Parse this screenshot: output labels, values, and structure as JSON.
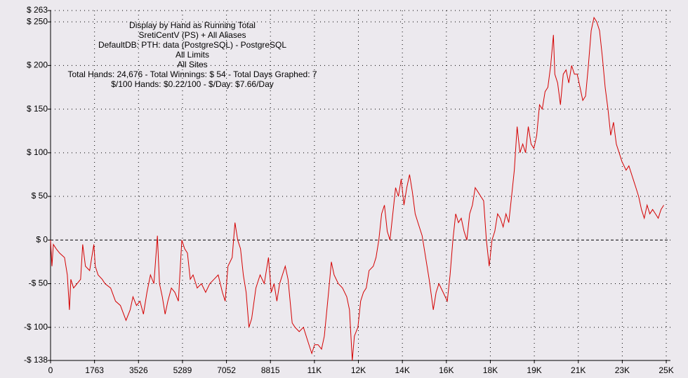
{
  "chart_data": {
    "type": "line",
    "title": "Display by Hand as Running Total",
    "subtitle": [
      "SretiCentV (PS) + All Aliases",
      "DefaultDB: PTH: data (PostgreSQL) - PostgreSQL",
      "All Limits",
      "All Sites",
      "Total Hands: 24,676 - Total Winnings: $ 54 - Total Days Graphed: 7",
      "$/100 Hands: $0.22/100 - $/Day: $7.66/Day"
    ],
    "x": [
      0,
      56,
      112,
      224,
      364,
      560,
      672,
      756,
      812,
      924,
      1064,
      1204,
      1288,
      1400,
      1568,
      1736,
      1792,
      1904,
      2072,
      2184,
      2408,
      2604,
      2800,
      3024,
      3192,
      3304,
      3444,
      3584,
      3724,
      3864,
      4004,
      4144,
      4284,
      4368,
      4480,
      4592,
      4704,
      4844,
      4984,
      5124,
      5264,
      5376,
      5488,
      5600,
      5712,
      5880,
      6048,
      6216,
      6384,
      6552,
      6720,
      6888,
      7000,
      7112,
      7280,
      7392,
      7504,
      7616,
      7728,
      7840,
      7952,
      8064,
      8232,
      8400,
      8568,
      8736,
      8848,
      8960,
      9072,
      9184,
      9296,
      9408,
      9520,
      9688,
      9800,
      9968,
      10136,
      10304,
      10472,
      10584,
      10724,
      10864,
      10976,
      11144,
      11256,
      11368,
      11536,
      11704,
      11872,
      11984,
      12096,
      12180,
      12320,
      12432,
      12544,
      12656,
      12768,
      12936,
      13048,
      13160,
      13272,
      13384,
      13496,
      13608,
      13720,
      13832,
      13944,
      14056,
      14168,
      14280,
      14392,
      14504,
      14616,
      14728,
      14896,
      15008,
      15176,
      15344,
      15456,
      15568,
      15736,
      15904,
      16016,
      16128,
      16240,
      16352,
      16464,
      16576,
      16688,
      16800,
      16912,
      17024,
      17136,
      17248,
      17360,
      17472,
      17584,
      17696,
      17808,
      17920,
      18032,
      18144,
      18256,
      18368,
      18480,
      18592,
      18704,
      18816,
      18928,
      19040,
      19152,
      19264,
      19376,
      19488,
      19600,
      19712,
      19824,
      19936,
      20048,
      20160,
      20216,
      20328,
      20440,
      20552,
      20664,
      20776,
      20888,
      21000,
      21112,
      21224,
      21336,
      21448,
      21560,
      21672,
      21784,
      21896,
      22008,
      22120,
      22232,
      22344,
      22456,
      22568,
      22680,
      22792,
      22904,
      23072,
      23184,
      23352,
      23464,
      23576,
      23688,
      23800,
      23912,
      24024,
      24136,
      24248,
      24360,
      24472,
      24584
    ],
    "series": [
      {
        "color": "#d40000",
        "values": [
          0,
          -30,
          -5,
          -10,
          -15,
          -20,
          -40,
          -80,
          -45,
          -55,
          -50,
          -45,
          -5,
          -30,
          -35,
          -5,
          -30,
          -40,
          -45,
          -50,
          -55,
          -70,
          -75,
          -92,
          -80,
          -65,
          -75,
          -70,
          -85,
          -60,
          -40,
          -50,
          5,
          -50,
          -65,
          -85,
          -70,
          -55,
          -60,
          -70,
          0,
          -10,
          -15,
          -45,
          -40,
          -55,
          -50,
          -60,
          -50,
          -45,
          -40,
          -60,
          -70,
          -30,
          -20,
          20,
          0,
          -10,
          -40,
          -60,
          -100,
          -90,
          -55,
          -40,
          -50,
          -20,
          -60,
          -50,
          -70,
          -50,
          -40,
          -30,
          -45,
          -95,
          -100,
          -105,
          -100,
          -115,
          -130,
          -120,
          -120,
          -125,
          -110,
          -60,
          -25,
          -40,
          -50,
          -55,
          -65,
          -80,
          -138,
          -110,
          -100,
          -70,
          -60,
          -55,
          -35,
          -30,
          -20,
          0,
          30,
          40,
          10,
          0,
          30,
          60,
          50,
          70,
          40,
          60,
          75,
          55,
          30,
          20,
          5,
          -15,
          -45,
          -80,
          -60,
          -50,
          -60,
          -70,
          -40,
          0,
          30,
          20,
          25,
          10,
          0,
          30,
          40,
          60,
          55,
          50,
          45,
          0,
          -30,
          0,
          10,
          30,
          25,
          15,
          30,
          20,
          50,
          80,
          130,
          100,
          110,
          100,
          130,
          110,
          105,
          120,
          155,
          150,
          170,
          175,
          200,
          235,
          190,
          180,
          155,
          190,
          195,
          180,
          200,
          190,
          190,
          175,
          160,
          165,
          200,
          240,
          255,
          250,
          240,
          210,
          175,
          150,
          120,
          135,
          110,
          100,
          90,
          80,
          85,
          70,
          60,
          50,
          35,
          25,
          40,
          30,
          35,
          30,
          25,
          35,
          40
        ]
      }
    ],
    "xlim": [
      0,
      24850
    ],
    "xticks": [
      0,
      1763,
      3526,
      5289,
      7052,
      8815,
      {
        "value": 10578,
        "label": "11K"
      },
      {
        "value": 12341,
        "label": "12K"
      },
      {
        "value": 14104,
        "label": "14K"
      },
      {
        "value": 15867,
        "label": "16K"
      },
      {
        "value": 17630,
        "label": "18K"
      },
      {
        "value": 19393,
        "label": "19K"
      },
      {
        "value": 21156,
        "label": "21K"
      },
      {
        "value": 22919,
        "label": "23K"
      },
      {
        "value": 24682,
        "label": "25K"
      }
    ],
    "ylim": [
      -138,
      263
    ],
    "yticks": [
      {
        "value": -138,
        "label": "-$ 138"
      },
      {
        "value": -100,
        "label": "-$ 100"
      },
      {
        "value": -50,
        "label": "-$ 50"
      },
      {
        "value": 0,
        "label": "$ 0"
      },
      {
        "value": 50,
        "label": "$ 50"
      },
      {
        "value": 100,
        "label": "$ 100"
      },
      {
        "value": 150,
        "label": "$ 150"
      },
      {
        "value": 200,
        "label": "$ 200"
      },
      {
        "value": 250,
        "label": "$ 250"
      },
      {
        "value": 263,
        "label": "$ 263"
      }
    ],
    "grid": true
  }
}
